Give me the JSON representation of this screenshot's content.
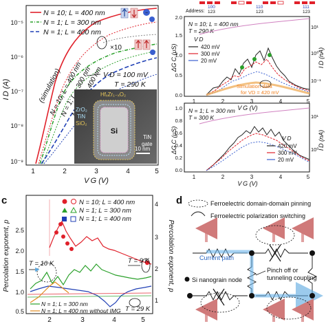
{
  "panel_c_label": "c",
  "panel_d_label": "d",
  "panel_a": {
    "legend": [
      {
        "text": "N = 10; L = 400 nm",
        "color": "#e0202a",
        "dash": ""
      },
      {
        "text": "N = 1; L = 300 nm",
        "color": "#2aa02a",
        "dash": "4,2,1,2"
      },
      {
        "text": "N = 1; L = 400 nm",
        "color": "#1f3fb5",
        "dash": "5,3"
      }
    ],
    "x10": "×10",
    "simulation": "(simulation)",
    "n_labels": [
      "N = 10; L = 400 nm",
      "N = 1; L = 300 nm",
      "N = 1; L = 400 nm"
    ],
    "vd": "V D = 100 mV",
    "temp": "T = 290 K",
    "inset": {
      "hf": "HfₓZr₁₋ₓO₂",
      "zro": "ZrO₂",
      "tin": "TiN",
      "sio": "SiO₂",
      "si": "Si",
      "tin_gate": "TiN",
      "gate": "gate",
      "scale": "10 nm"
    },
    "ylabel": "I D (A)",
    "xlabel": "V G (V)",
    "yticks": [
      "10⁻⁵",
      "10⁻⁶",
      "10⁻⁷",
      "10⁻⁸",
      "10⁻⁹"
    ],
    "xticks": [
      "1",
      "2",
      "3",
      "4",
      "5"
    ]
  },
  "panel_b": {
    "address_prefix": "Address:",
    "addresses": [
      "100",
      "123",
      "110",
      "123",
      "111",
      "123"
    ],
    "top": {
      "lines": [
        "N = 10; L = 400 nm",
        "T = 290 K"
      ],
      "vd_title": "V D",
      "legend": [
        {
          "text": "420 mV",
          "color": "#222"
        },
        {
          "text": "300 mV",
          "color": "#e0202a"
        },
        {
          "text": "20 mV",
          "color": "#3a5fd0"
        }
      ],
      "sim": "Simulation data",
      "sim2": "for VD = 420 mV",
      "ylabel": "ΔG C (μS)",
      "ylabel_right": "I D (nA)",
      "yticks": [
        "0.0",
        "0.5",
        "1.0",
        "1.5",
        "2.0"
      ],
      "yticks_right": [
        "10⁻¹",
        "10⁰",
        "10¹"
      ],
      "xticks": [
        "1",
        "2",
        "3",
        "4",
        "5"
      ],
      "xlabel": "V G (V)"
    },
    "bottom": {
      "lines": [
        "N = 1; L = 300 nm",
        "T = 300 K"
      ],
      "vd_title": "V D",
      "legend": [
        {
          "text": "420 mV",
          "color": "#222"
        },
        {
          "text": "300 mV",
          "color": "#e0202a"
        },
        {
          "text": "20 mV",
          "color": "#3a5fd0"
        }
      ],
      "ylabel": "ΔG C (μS)",
      "ylabel_right": "I D (nA)",
      "yticks": [
        "0.0",
        "0.2",
        "0.4",
        "0.6",
        "0.8",
        "1.0"
      ],
      "yticks_right": [
        "10⁰",
        "10¹"
      ],
      "xticks": [
        "1",
        "2",
        "3",
        "4",
        "5"
      ],
      "xlabel": "V G (V)"
    }
  },
  "panel_c": {
    "legend": [
      {
        "text": "N = 10; L = 400 nm",
        "color": "#e0202a"
      },
      {
        "text": "N = 1; L = 300 nm",
        "color": "#2aa02a"
      },
      {
        "text": "N = 1; L = 400 nm",
        "color": "#1f3fb5"
      }
    ],
    "t10": "T = 10 K",
    "t9": "T = 9 K",
    "t29": "T = 29 K",
    "bottom_legend": [
      {
        "text": "N = 1; L = 300 nm",
        "color": "#2aa02a"
      },
      {
        "text": "N = 1; L = 400 nm without IMG",
        "color": "#e08a20"
      }
    ],
    "ylabel": "Percolation exponent, p",
    "ylabel_right": "Percolation exponent, p",
    "xlabel": "V G (V)",
    "yticks": [
      "0.5",
      "1.0",
      "1.5",
      "2.0",
      "2.5"
    ],
    "yticks_right": [
      "1",
      "2",
      "3",
      "4"
    ],
    "xticks": [
      "2",
      "3",
      "4",
      "5"
    ]
  },
  "panel_d": {
    "pinning": "Ferroelectric domain-domain pinning",
    "switching": "Ferroelectric polarization switching",
    "current_path": "Current path",
    "pinch": "Pinch off or",
    "tunneling": "tunneling coupling",
    "node": "Si nanograin node"
  }
}
